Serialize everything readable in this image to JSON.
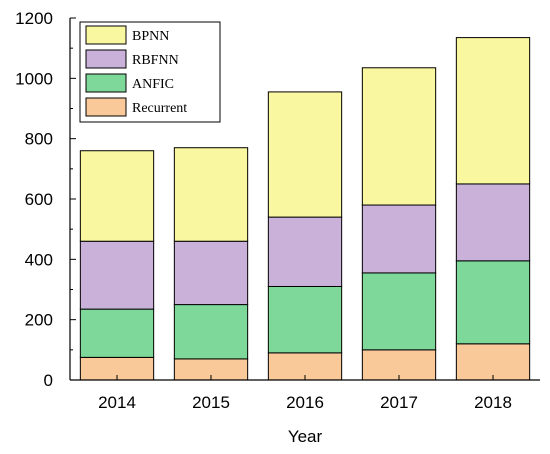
{
  "chart_data": {
    "type": "bar",
    "stacked": true,
    "categories": [
      "2014",
      "2015",
      "2016",
      "2017",
      "2018"
    ],
    "xlabel": "Year",
    "ylabel": "",
    "title": "",
    "ylim": [
      0,
      1200
    ],
    "yticks": [
      0,
      200,
      400,
      600,
      800,
      1000,
      1200
    ],
    "grid": false,
    "legend_position": "top-left",
    "series": [
      {
        "name": "Recurrent",
        "color": "#F9C99A",
        "values": [
          75,
          70,
          90,
          100,
          120
        ]
      },
      {
        "name": "ANFIC",
        "color": "#7DD89A",
        "values": [
          160,
          180,
          220,
          255,
          275
        ]
      },
      {
        "name": "RBFNN",
        "color": "#C9B1D9",
        "values": [
          225,
          210,
          230,
          225,
          255
        ]
      },
      {
        "name": "BPNN",
        "color": "#F9F8A0",
        "values": [
          300,
          310,
          415,
          455,
          485
        ]
      }
    ],
    "legend_order": [
      "BPNN",
      "RBFNN",
      "ANFIC",
      "Recurrent"
    ]
  }
}
